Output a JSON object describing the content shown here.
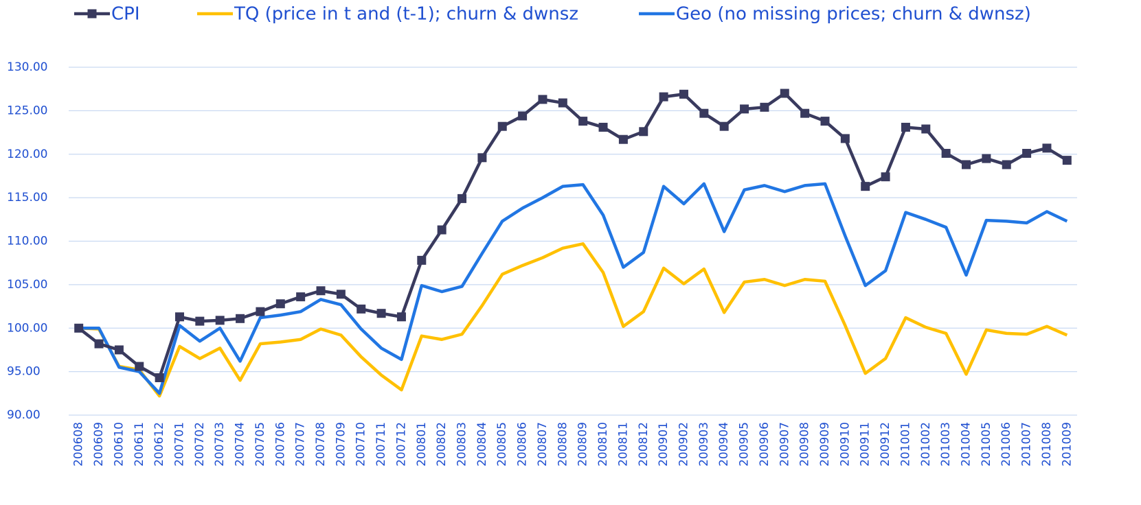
{
  "chart_data": {
    "type": "line",
    "categories": [
      "200608",
      "200609",
      "200610",
      "200611",
      "200612",
      "200701",
      "200702",
      "200703",
      "200704",
      "200705",
      "200706",
      "200707",
      "200708",
      "200709",
      "200710",
      "200711",
      "200712",
      "200801",
      "200802",
      "200803",
      "200804",
      "200805",
      "200806",
      "200807",
      "200808",
      "200809",
      "200810",
      "200811",
      "200812",
      "200901",
      "200902",
      "200903",
      "200904",
      "200905",
      "200906",
      "200907",
      "200908",
      "200909",
      "200910",
      "200911",
      "200912",
      "201001",
      "201002",
      "201003",
      "201004",
      "201005",
      "201006",
      "201007",
      "201008",
      "201009"
    ],
    "series": [
      {
        "name": "CPI",
        "color": "#393a5e",
        "marker": "square",
        "values": [
          100.0,
          98.2,
          97.5,
          95.6,
          94.3,
          101.3,
          100.8,
          100.9,
          101.1,
          101.9,
          102.8,
          103.6,
          104.3,
          103.9,
          102.2,
          101.7,
          101.3,
          107.8,
          111.3,
          114.9,
          119.6,
          123.2,
          124.4,
          126.3,
          125.9,
          123.8,
          123.1,
          121.7,
          122.6,
          126.6,
          126.9,
          124.7,
          123.2,
          125.2,
          125.4,
          127.0,
          124.7,
          123.8,
          121.8,
          116.3,
          117.4,
          123.1,
          122.9,
          120.1,
          118.8,
          119.5,
          118.8,
          120.1,
          120.7,
          119.3
        ]
      },
      {
        "name": "TQ (price in t and (t-1); churn & dwnsz",
        "color": "#ffc000",
        "values": [
          100.0,
          99.9,
          95.6,
          95.2,
          92.2,
          97.9,
          96.5,
          97.7,
          94.0,
          98.2,
          98.4,
          98.7,
          99.9,
          99.2,
          96.7,
          94.6,
          92.9,
          99.1,
          98.7,
          99.3,
          102.6,
          106.2,
          107.2,
          108.1,
          109.2,
          109.7,
          106.4,
          100.2,
          101.9,
          106.9,
          105.1,
          106.8,
          101.8,
          105.3,
          105.6,
          104.9,
          105.6,
          105.4,
          100.3,
          94.8,
          96.5,
          101.2,
          100.1,
          99.4,
          94.7,
          99.8,
          99.4,
          99.3,
          100.2,
          99.2
        ]
      },
      {
        "name": "Geo (no missing prices; churn & dwnsz)",
        "color": "#2176e3",
        "values": [
          100.0,
          100.0,
          95.5,
          95.0,
          92.5,
          100.3,
          98.5,
          100.0,
          96.2,
          101.2,
          101.5,
          101.9,
          103.3,
          102.7,
          99.9,
          97.7,
          96.4,
          104.9,
          104.2,
          104.8,
          108.6,
          112.3,
          113.8,
          115.0,
          116.3,
          116.5,
          113.0,
          107.0,
          108.7,
          116.3,
          114.3,
          116.6,
          111.1,
          115.9,
          116.4,
          115.7,
          116.4,
          116.6,
          110.6,
          104.9,
          106.6,
          113.3,
          112.5,
          111.6,
          106.1,
          112.4,
          112.3,
          112.1,
          113.4,
          112.3
        ]
      }
    ],
    "ylim": [
      90,
      130
    ],
    "yticks": [
      {
        "value": 90,
        "label": "90.00"
      },
      {
        "value": 95,
        "label": "95.00"
      },
      {
        "value": 100,
        "label": "100.00"
      },
      {
        "value": 105,
        "label": "105.00"
      },
      {
        "value": 110,
        "label": "110.00"
      },
      {
        "value": 115,
        "label": "115.00"
      },
      {
        "value": 120,
        "label": "120.00"
      },
      {
        "value": 125,
        "label": "125.00"
      },
      {
        "value": 130,
        "label": "130.00"
      }
    ],
    "grid": true,
    "legend": "top"
  }
}
